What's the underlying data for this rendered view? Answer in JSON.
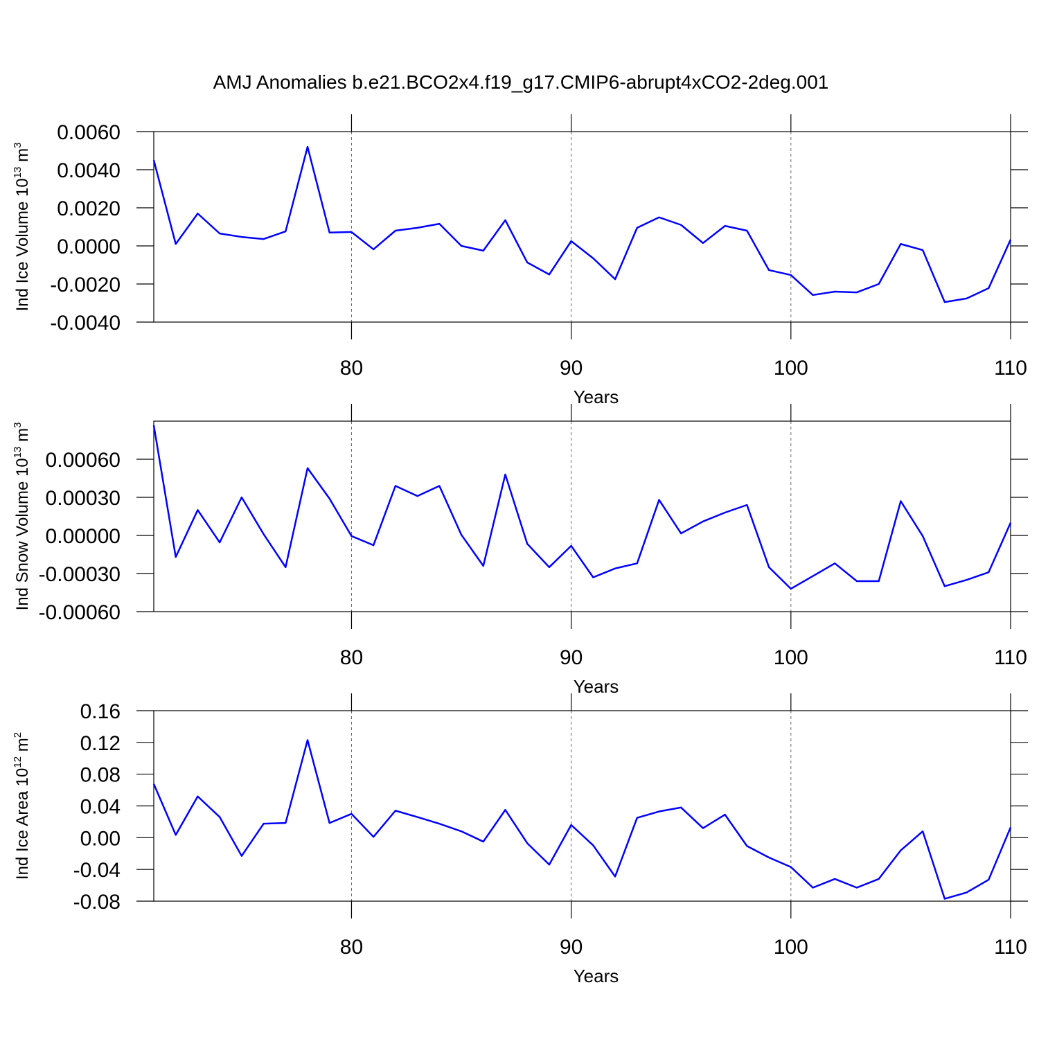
{
  "chart_data": [
    {
      "type": "line",
      "title": "AMJ Anomalies b.e21.BCO2x4.f19_g17.CMIP6-abrupt4xCO2-2deg.001",
      "ylabel": [
        "Ind Ice Volume 10",
        "13",
        " m",
        "3"
      ],
      "xlabel": "Years",
      "x": [
        71,
        72,
        73,
        74,
        75,
        76,
        77,
        78,
        79,
        80,
        81,
        82,
        83,
        84,
        85,
        86,
        87,
        88,
        89,
        90,
        91,
        92,
        93,
        94,
        95,
        96,
        97,
        98,
        99,
        100,
        101,
        102,
        103,
        104,
        105,
        106,
        107,
        108,
        109,
        110
      ],
      "series": [
        {
          "color": "#0000ff",
          "values": [
            0.0045,
            0.0001,
            0.0017,
            0.00065,
            0.00047,
            0.00036,
            0.00076,
            0.0052,
            0.0007,
            0.00073,
            -0.00018,
            0.0008,
            0.00095,
            0.00116,
            0,
            -0.00025,
            0.00135,
            -0.00087,
            -0.0015,
            0.00025,
            -0.00065,
            -0.00175,
            0.00095,
            0.0015,
            0.0011,
            0.00015,
            0.00105,
            0.0008,
            -0.00127,
            -0.00153,
            -0.00258,
            -0.0024,
            -0.00244,
            -0.002,
            0.0001,
            -0.00022,
            -0.00295,
            -0.00276,
            -0.00222,
            0.00033
          ]
        }
      ],
      "xlim": [
        71,
        110
      ],
      "xticks": [
        80,
        90,
        100,
        110
      ],
      "ylim": [
        -0.004,
        0.006
      ],
      "yticks": [
        {
          "value": -0.004,
          "label": "-0.0040"
        },
        {
          "value": -0.002,
          "label": "-0.0020"
        },
        {
          "value": 0,
          "label": "0.0000"
        },
        {
          "value": 0.002,
          "label": "0.0020"
        },
        {
          "value": 0.004,
          "label": "0.0040"
        },
        {
          "value": 0.006,
          "label": "0.0060"
        }
      ],
      "grid": true
    },
    {
      "type": "line",
      "ylabel": [
        "Ind Snow Volume 10",
        "13",
        " m",
        "3"
      ],
      "xlabel": "Years",
      "x": [
        71,
        72,
        73,
        74,
        75,
        76,
        77,
        78,
        79,
        80,
        81,
        82,
        83,
        84,
        85,
        86,
        87,
        88,
        89,
        90,
        91,
        92,
        93,
        94,
        95,
        96,
        97,
        98,
        99,
        100,
        101,
        102,
        103,
        104,
        105,
        106,
        107,
        108,
        109,
        110
      ],
      "series": [
        {
          "color": "#0000ff",
          "values": [
            0.000867,
            -0.00017,
            0.0002,
            -5.5e-05,
            0.0003,
            1e-05,
            -0.00025,
            0.00053,
            0.00029,
            -5e-06,
            -7.7e-05,
            0.00039,
            0.00031,
            0.00039,
            5e-06,
            -0.00024,
            0.00048,
            -6.6e-05,
            -0.00025,
            -8.2e-05,
            -0.00033,
            -0.00026,
            -0.00022,
            0.00028,
            1.6e-05,
            0.00011,
            0.00018,
            0.00024,
            -0.00025,
            -0.00042,
            -0.00032,
            -0.00022,
            -0.00036,
            -0.00036,
            0.00027,
            -5e-06,
            -0.0004,
            -0.00035,
            -0.00029,
            0.0001
          ]
        }
      ],
      "xlim": [
        71,
        110
      ],
      "xticks": [
        80,
        90,
        100,
        110
      ],
      "ylim": [
        -0.0006,
        0.0009
      ],
      "yticks": [
        {
          "value": -0.0006,
          "label": "-0.00060"
        },
        {
          "value": -0.0003,
          "label": "-0.00030"
        },
        {
          "value": 0,
          "label": "0.00000"
        },
        {
          "value": 0.0003,
          "label": "0.00030"
        },
        {
          "value": 0.0006,
          "label": "0.00060"
        }
      ],
      "grid": true
    },
    {
      "type": "line",
      "ylabel": [
        "Ind Ice Area 10",
        "12",
        " m",
        "2"
      ],
      "xlabel": "Years",
      "x": [
        71,
        72,
        73,
        74,
        75,
        76,
        77,
        78,
        79,
        80,
        81,
        82,
        83,
        84,
        85,
        86,
        87,
        88,
        89,
        90,
        91,
        92,
        93,
        94,
        95,
        96,
        97,
        98,
        99,
        100,
        101,
        102,
        103,
        104,
        105,
        106,
        107,
        108,
        109,
        110
      ],
      "series": [
        {
          "color": "#0000ff",
          "values": [
            0.0677,
            0.0035,
            0.052,
            0.026,
            -0.023,
            0.0176,
            0.0185,
            0.123,
            0.0185,
            0.03,
            0.001,
            0.034,
            0.026,
            0.0176,
            0.008,
            -0.005,
            0.035,
            -0.007,
            -0.034,
            0.016,
            -0.0097,
            -0.049,
            0.025,
            0.033,
            0.038,
            0.012,
            0.029,
            -0.0105,
            -0.025,
            -0.037,
            -0.063,
            -0.052,
            -0.063,
            -0.052,
            -0.016,
            0.008,
            -0.077,
            -0.069,
            -0.053,
            0.013
          ]
        }
      ],
      "xlim": [
        71,
        110
      ],
      "xticks": [
        80,
        90,
        100,
        110
      ],
      "ylim": [
        -0.08,
        0.16
      ],
      "yticks": [
        -0.08,
        -0.04,
        {
          "value": 0,
          "label": "0.00"
        },
        0.04,
        0.08,
        0.12,
        0.16
      ],
      "grid": true
    }
  ]
}
